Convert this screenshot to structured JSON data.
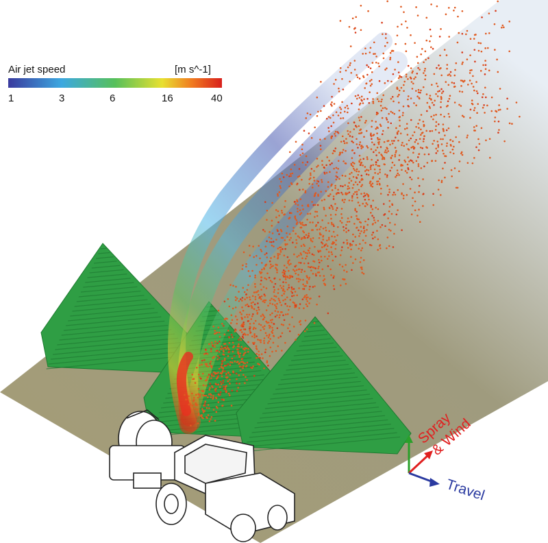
{
  "colorbar": {
    "title": "Air jet speed",
    "unit": "[m s^-1]",
    "ticks": [
      "1",
      "3",
      "6",
      "16",
      "40"
    ]
  },
  "axis_labels": {
    "spray_wind": [
      "Spray",
      "& Wind"
    ],
    "travel": "Travel"
  }
}
